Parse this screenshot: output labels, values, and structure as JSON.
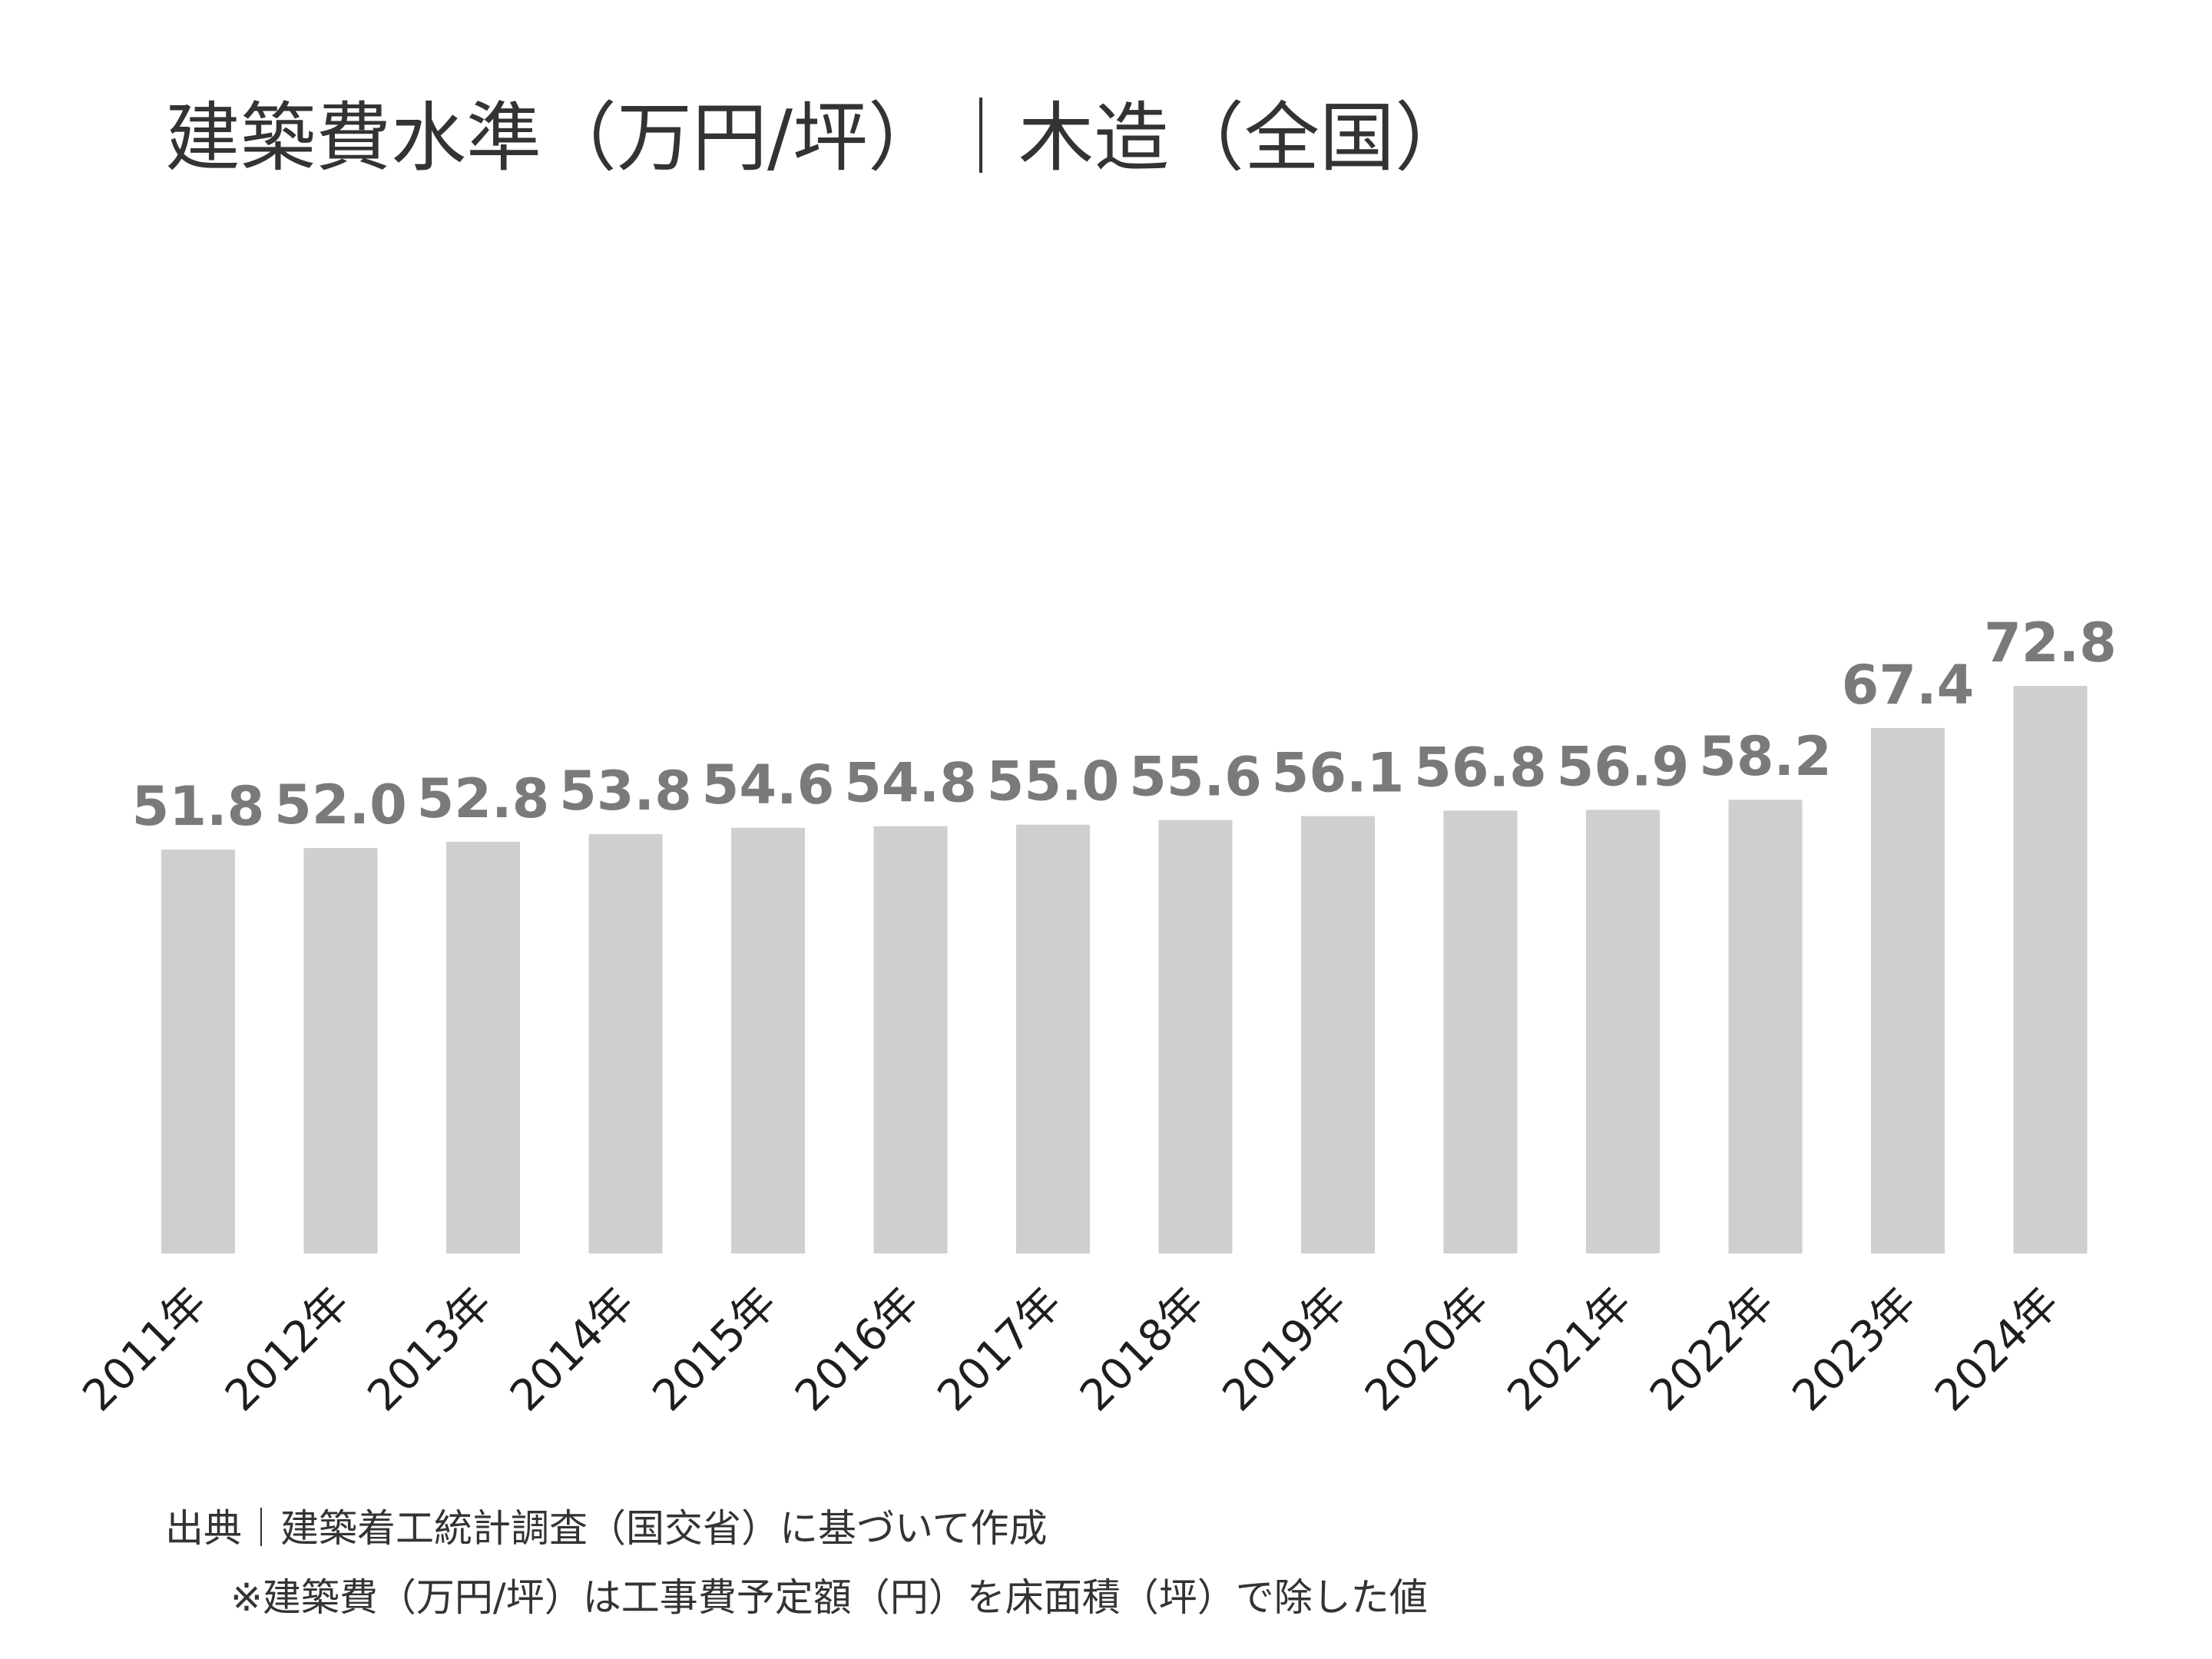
{
  "chart_data": {
    "type": "bar",
    "title": "建築費水準（万円/坪）｜木造（全国）",
    "categories": [
      "2011年",
      "2012年",
      "2013年",
      "2014年",
      "2015年",
      "2016年",
      "2017年",
      "2018年",
      "2019年",
      "2020年",
      "2021年",
      "2022年",
      "2023年",
      "2024年"
    ],
    "values": [
      51.8,
      52.0,
      52.8,
      53.8,
      54.6,
      54.8,
      55.0,
      55.6,
      56.1,
      56.8,
      56.9,
      58.2,
      67.4,
      72.8
    ],
    "value_labels": [
      "51.8",
      "52.0",
      "52.8",
      "53.8",
      "54.6",
      "54.8",
      "55.0",
      "55.6",
      "56.1",
      "56.8",
      "56.9",
      "58.2",
      "67.4",
      "72.8"
    ],
    "xlabel": "",
    "ylabel": "",
    "ylim": [
      0,
      72.8
    ],
    "grid": false,
    "legend": "none",
    "colors": {
      "bar": "#d0cfd0",
      "value_label": "#7a7a7a"
    }
  },
  "footnotes": {
    "source": "出典｜建築着工統計調査（国交省）に基づいて作成",
    "note": "※建築費（万円/坪）は工事費予定額（円）を床面積（坪）で除した値"
  }
}
